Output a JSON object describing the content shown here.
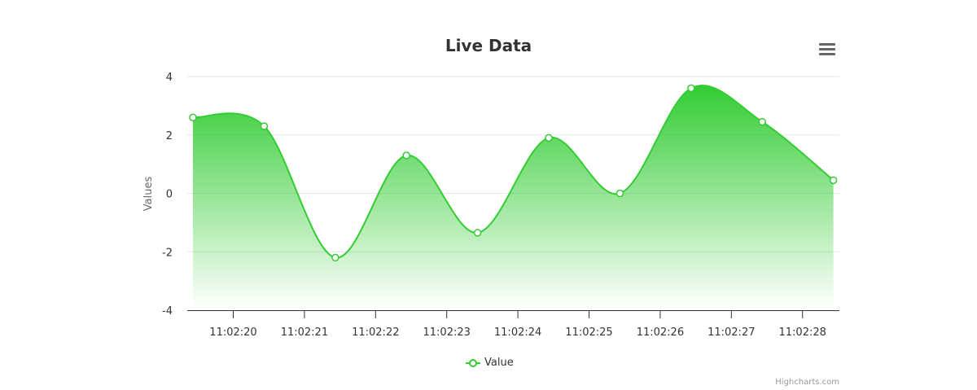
{
  "header": {
    "title": "Live Data",
    "menu_icon": "hamburger-icon"
  },
  "legend": {
    "items": [
      {
        "label": "Value",
        "color": "#33cc33"
      }
    ]
  },
  "credits": "Highcharts.com",
  "colors": {
    "series": "#33cc33",
    "grid": "#e6e6e6",
    "axis": "#333333"
  },
  "chart_data": {
    "type": "area",
    "title": "Live Data",
    "xlabel": "",
    "ylabel": "Values",
    "ylim": [
      -4,
      4
    ],
    "yticks": [
      -4,
      -2,
      0,
      2,
      4
    ],
    "xticks": [
      "11:02:20",
      "11:02:21",
      "11:02:22",
      "11:02:23",
      "11:02:24",
      "11:02:25",
      "11:02:26",
      "11:02:27",
      "11:02:28"
    ],
    "grid": true,
    "legend_position": "bottom-center",
    "series": [
      {
        "name": "Value",
        "x": [
          "11:02:19.4",
          "11:02:20.4",
          "11:02:21.4",
          "11:02:22.4",
          "11:02:23.4",
          "11:02:24.4",
          "11:02:25.4",
          "11:02:26.4",
          "11:02:27.4",
          "11:02:28.4"
        ],
        "values": [
          2.6,
          2.3,
          -2.2,
          1.3,
          -1.35,
          1.9,
          0.0,
          3.6,
          2.45,
          0.45
        ]
      }
    ]
  }
}
